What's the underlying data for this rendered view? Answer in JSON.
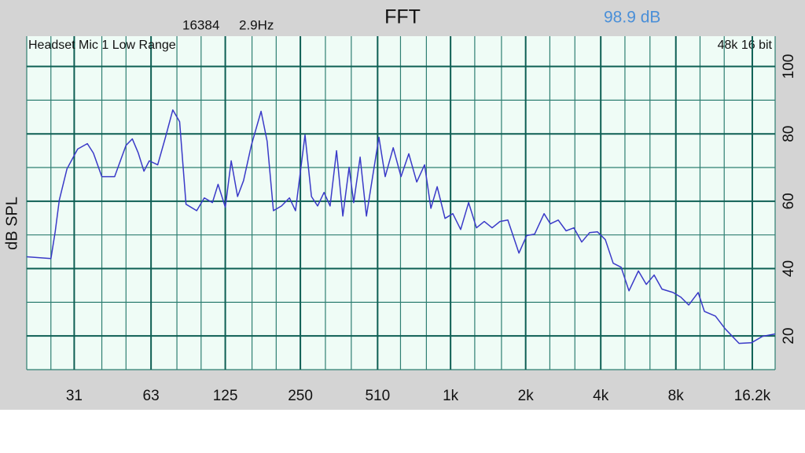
{
  "chart_data": {
    "type": "line",
    "title": "FFT",
    "fft_size": "16384",
    "resolution": "2.9Hz",
    "level": "98.9 dB",
    "input_name": "Headset Mic 1 Low Range",
    "format": "48k 16 bit",
    "y_label": "dB SPL",
    "xscale": "log",
    "grid": true,
    "color": "#3a3ac8",
    "xlim": [
      20,
      20000
    ],
    "ylim": [
      10,
      109
    ],
    "xticks": [
      31,
      63,
      125,
      250,
      510,
      {
        "value": 1000,
        "label": "1k"
      },
      {
        "value": 2000,
        "label": "2k"
      },
      {
        "value": 4000,
        "label": "4k"
      },
      {
        "value": 8000,
        "label": "8k"
      },
      {
        "value": 16200,
        "label": "16.2k"
      }
    ],
    "x_minor_ticks": [
      20,
      25,
      40,
      50,
      80,
      100,
      160,
      200,
      315,
      400,
      630,
      800,
      1250,
      1600,
      2500,
      3150,
      5000,
      6300,
      10000,
      12500,
      20000
    ],
    "yticks": [
      20,
      40,
      60,
      80,
      100
    ],
    "y_minor_ticks": [
      10,
      30,
      50,
      70,
      90
    ],
    "x": [
      20,
      25,
      26,
      27,
      29,
      32,
      35,
      37,
      40,
      45,
      50,
      53,
      56,
      59,
      62,
      67,
      72,
      77,
      82,
      87,
      96,
      103,
      111,
      117,
      125,
      132,
      140,
      148,
      159,
      174,
      184,
      195,
      210,
      226,
      239,
      261,
      277,
      293,
      311,
      329,
      349,
      370,
      392,
      409,
      434,
      460,
      487,
      516,
      547,
      589,
      633,
      680,
      732,
      787,
      834,
      884,
      950,
      1021,
      1098,
      1181,
      1270,
      1365,
      1468,
      1578,
      1697,
      1879,
      2020,
      2172,
      2371,
      2512,
      2702,
      2904,
      3122,
      3357,
      3610,
      3881,
      4173,
      4487,
      4826,
      5189,
      5662,
      6087,
      6546,
      7038,
      7792,
      8378,
      9008,
      9827,
      10412,
      11530,
      12578,
      14332,
      16104,
      17818,
      20000
    ],
    "values": [
      43.5,
      43.0,
      50.9,
      60.3,
      69.6,
      75.5,
      77.1,
      74.3,
      67.3,
      67.3,
      76.6,
      78.5,
      74.3,
      68.9,
      72.0,
      70.8,
      79.0,
      87.1,
      83.6,
      59.1,
      57.2,
      61.0,
      59.6,
      65.0,
      58.2,
      72.0,
      61.4,
      66.1,
      76.6,
      86.7,
      77.8,
      57.2,
      58.6,
      61.0,
      57.2,
      79.7,
      61.4,
      58.6,
      62.6,
      58.6,
      75.0,
      55.6,
      70.1,
      59.6,
      73.1,
      55.6,
      67.3,
      79.0,
      67.3,
      75.9,
      67.3,
      74.1,
      65.7,
      70.8,
      57.9,
      64.3,
      54.9,
      56.3,
      51.6,
      59.6,
      52.1,
      54.0,
      52.1,
      54.0,
      54.4,
      44.6,
      49.8,
      50.2,
      56.3,
      53.3,
      54.4,
      51.2,
      52.1,
      47.9,
      50.7,
      50.9,
      48.6,
      41.6,
      40.4,
      33.4,
      39.3,
      35.3,
      38.1,
      33.9,
      32.9,
      31.5,
      29.2,
      32.9,
      27.3,
      25.9,
      22.2,
      17.8,
      18.0,
      19.9,
      20.6
    ]
  }
}
